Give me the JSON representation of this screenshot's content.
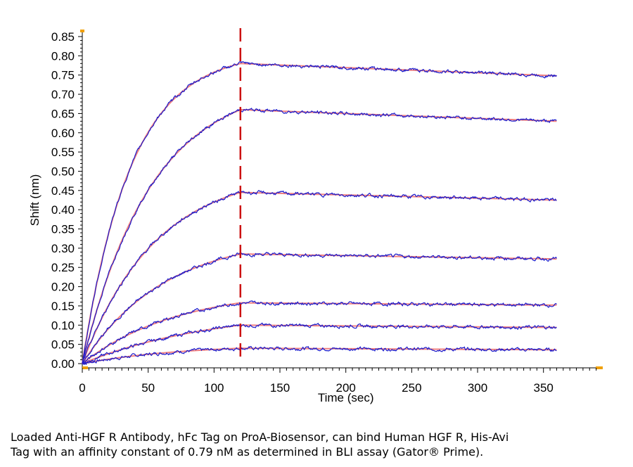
{
  "chart_data": {
    "type": "line",
    "title": "",
    "xlabel": "Time (sec)",
    "ylabel": "Shift (nm)",
    "xlim": [
      0,
      395
    ],
    "ylim": [
      -0.01,
      0.86
    ],
    "x_ticks": [
      0,
      50,
      100,
      150,
      200,
      250,
      300,
      350
    ],
    "y_ticks": [
      0.0,
      0.05,
      0.1,
      0.15,
      0.2,
      0.25,
      0.3,
      0.35,
      0.4,
      0.45,
      0.5,
      0.55,
      0.6,
      0.65,
      0.7,
      0.75,
      0.8,
      0.85
    ],
    "association_end_sec": 120,
    "x_end_sec": 360,
    "colors": {
      "data": "#1a1acc",
      "fit": "#f08080",
      "marker": "#cc1111",
      "axis": "#000000",
      "axis_end": "#f0a000"
    },
    "curves": [
      {
        "plateau": 0.04,
        "end": 0.036,
        "k": 0.013
      },
      {
        "plateau": 0.1,
        "end": 0.094,
        "k": 0.01
      },
      {
        "plateau": 0.158,
        "end": 0.152,
        "k": 0.014
      },
      {
        "plateau": 0.285,
        "end": 0.272,
        "k": 0.016
      },
      {
        "plateau": 0.445,
        "end": 0.425,
        "k": 0.018
      },
      {
        "plateau": 0.66,
        "end": 0.63,
        "k": 0.019
      },
      {
        "plateau": 0.78,
        "end": 0.748,
        "k": 0.027
      }
    ]
  },
  "caption": {
    "line1": "Loaded Anti-HGF R Antibody, hFc Tag on ProA-Biosensor, can bind Human HGF R, His-Avi",
    "line2": "Tag with an affinity constant of 0.79 nM as determined in BLI assay (Gator® Prime)."
  }
}
